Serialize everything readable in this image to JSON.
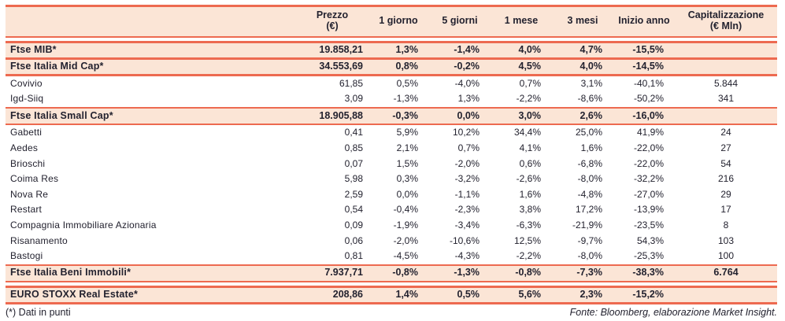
{
  "chart_data": {
    "type": "table",
    "columns": [
      {
        "label": "",
        "sub": ""
      },
      {
        "label": "Prezzo",
        "sub": "(€)"
      },
      {
        "label": "1 giorno",
        "sub": ""
      },
      {
        "label": "5 giorni",
        "sub": ""
      },
      {
        "label": "1 mese",
        "sub": ""
      },
      {
        "label": "3 mesi",
        "sub": ""
      },
      {
        "label": "Inizio anno",
        "sub": ""
      },
      {
        "label": "Capitalizzazione",
        "sub": "(€ Mln)"
      }
    ],
    "rows": [
      {
        "name": "Ftse MIB*",
        "type": "index",
        "prezzo": "19.858,21",
        "g1": "1,3%",
        "g5": "-1,4%",
        "m1": "4,0%",
        "m3": "4,7%",
        "ytd": "-15,5%",
        "cap": ""
      },
      {
        "name": "Ftse Italia Mid Cap*",
        "type": "index",
        "prezzo": "34.553,69",
        "g1": "0,8%",
        "g5": "-0,2%",
        "m1": "4,5%",
        "m3": "4,0%",
        "ytd": "-14,5%",
        "cap": ""
      },
      {
        "name": "Covivio",
        "type": "stock",
        "prezzo": "61,85",
        "g1": "0,5%",
        "g5": "-4,0%",
        "m1": "0,7%",
        "m3": "3,1%",
        "ytd": "-40,1%",
        "cap": "5.844"
      },
      {
        "name": "Igd-Siiq",
        "type": "stock",
        "prezzo": "3,09",
        "g1": "-1,3%",
        "g5": "1,3%",
        "m1": "-2,2%",
        "m3": "-8,6%",
        "ytd": "-50,2%",
        "cap": "341"
      },
      {
        "name": "Ftse Italia Small Cap*",
        "type": "index",
        "prezzo": "18.905,88",
        "g1": "-0,3%",
        "g5": "0,0%",
        "m1": "3,0%",
        "m3": "2,6%",
        "ytd": "-16,0%",
        "cap": ""
      },
      {
        "name": "Gabetti",
        "type": "stock",
        "prezzo": "0,41",
        "g1": "5,9%",
        "g5": "10,2%",
        "m1": "34,4%",
        "m3": "25,0%",
        "ytd": "41,9%",
        "cap": "24"
      },
      {
        "name": "Aedes",
        "type": "stock",
        "prezzo": "0,85",
        "g1": "2,1%",
        "g5": "0,7%",
        "m1": "4,1%",
        "m3": "1,6%",
        "ytd": "-22,0%",
        "cap": "27"
      },
      {
        "name": "Brioschi",
        "type": "stock",
        "prezzo": "0,07",
        "g1": "1,5%",
        "g5": "-2,0%",
        "m1": "0,6%",
        "m3": "-6,8%",
        "ytd": "-22,0%",
        "cap": "54"
      },
      {
        "name": "Coima Res",
        "type": "stock",
        "prezzo": "5,98",
        "g1": "0,3%",
        "g5": "-3,2%",
        "m1": "-2,6%",
        "m3": "-8,0%",
        "ytd": "-32,2%",
        "cap": "216"
      },
      {
        "name": "Nova Re",
        "type": "stock",
        "prezzo": "2,59",
        "g1": "0,0%",
        "g5": "-1,1%",
        "m1": "1,6%",
        "m3": "-4,8%",
        "ytd": "-27,0%",
        "cap": "29"
      },
      {
        "name": "Restart",
        "type": "stock",
        "prezzo": "0,54",
        "g1": "-0,4%",
        "g5": "-2,3%",
        "m1": "3,8%",
        "m3": "17,2%",
        "ytd": "-13,9%",
        "cap": "17"
      },
      {
        "name": "Compagnia Immobiliare Azionaria",
        "type": "stock",
        "prezzo": "0,09",
        "g1": "-1,9%",
        "g5": "-3,4%",
        "m1": "-6,3%",
        "m3": "-21,9%",
        "ytd": "-23,5%",
        "cap": "8"
      },
      {
        "name": "Risanamento",
        "type": "stock",
        "prezzo": "0,06",
        "g1": "-2,0%",
        "g5": "-10,6%",
        "m1": "12,5%",
        "m3": "-9,7%",
        "ytd": "54,3%",
        "cap": "103"
      },
      {
        "name": "Bastogi",
        "type": "stock",
        "prezzo": "0,81",
        "g1": "-4,5%",
        "g5": "-4,3%",
        "m1": "-2,2%",
        "m3": "-8,0%",
        "ytd": "-25,3%",
        "cap": "100"
      },
      {
        "name": "Ftse Italia Beni Immobili*",
        "type": "index",
        "prezzo": "7.937,71",
        "g1": "-0,8%",
        "g5": "-1,3%",
        "m1": "-0,8%",
        "m3": "-7,3%",
        "ytd": "-38,3%",
        "cap": "6.764"
      },
      {
        "name": "EURO STOXX Real Estate*",
        "type": "index",
        "prezzo": "208,86",
        "g1": "1,4%",
        "g5": "0,5%",
        "m1": "5,6%",
        "m3": "2,3%",
        "ytd": "-15,2%",
        "cap": ""
      }
    ],
    "footnote": "(*) Dati in punti",
    "source": "Fonte: Bloomberg, elaborazione Market Insight."
  },
  "colors": {
    "accent_red": "#ED6A50",
    "row_highlight": "#FBE5D6",
    "text_dark": "#23222F"
  }
}
